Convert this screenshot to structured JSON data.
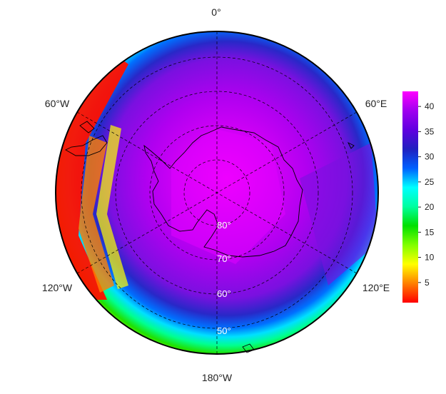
{
  "map": {
    "projection": "south-polar-stereographic",
    "longitude_labels": {
      "top": "0°",
      "upper_right": "60°E",
      "lower_right": "120°E",
      "bottom": "180°W",
      "lower_left": "120°W",
      "upper_left": "60°W"
    },
    "latitude_labels": [
      "80°",
      "70°",
      "60°",
      "50°"
    ],
    "colorbar": {
      "ticks": [
        "5",
        "10",
        "15",
        "20",
        "25",
        "30",
        "35",
        "40"
      ],
      "tick_values": [
        5,
        10,
        15,
        20,
        25,
        30,
        35,
        40
      ],
      "min": 1,
      "max": 43,
      "colors": [
        "#ff0000",
        "#ff8000",
        "#ffff00",
        "#80ff00",
        "#00e000",
        "#00ffa0",
        "#00ffff",
        "#0060ff",
        "#2020c0",
        "#6000e0",
        "#a000f0",
        "#ff00ff"
      ]
    }
  }
}
